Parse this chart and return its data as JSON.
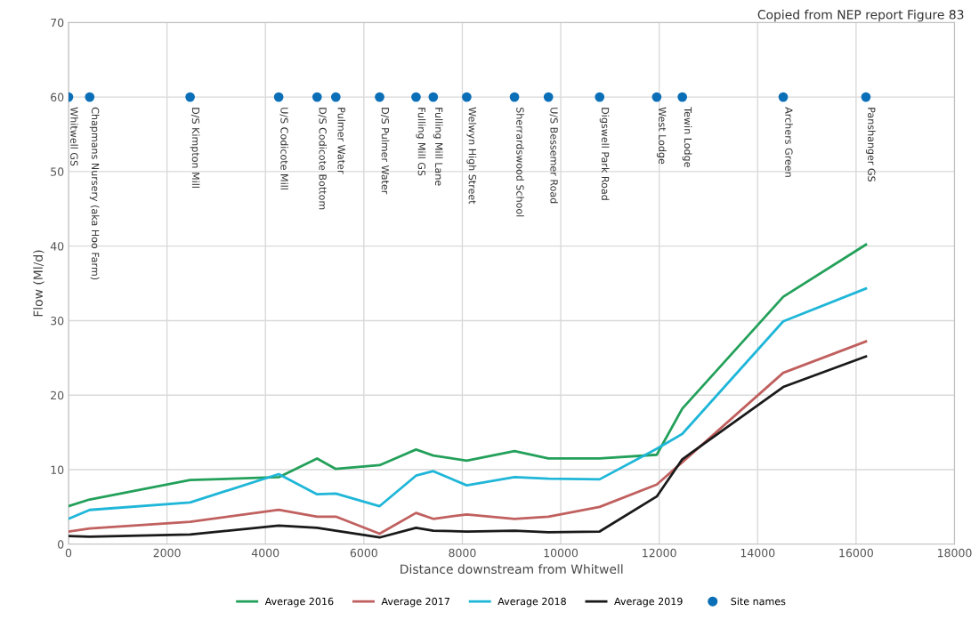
{
  "chart_data": {
    "type": "line",
    "xlabel": "Distance downstream from Whitwell",
    "ylabel": "Flow (Ml/d)",
    "x": [
      0,
      430,
      2470,
      4270,
      5050,
      5430,
      6320,
      7060,
      7410,
      8090,
      9060,
      9750,
      10790,
      11950,
      12470,
      14520,
      16200
    ],
    "xlim": [
      0,
      18000
    ],
    "xticks": [
      0,
      2000,
      4000,
      6000,
      8000,
      10000,
      12000,
      14000,
      16000,
      18000
    ],
    "ylim": [
      0,
      70
    ],
    "yticks": [
      0,
      10,
      20,
      30,
      40,
      50,
      60,
      70
    ],
    "grid": true,
    "legend": "bottom",
    "marker": "none",
    "line_style": "solid",
    "series": [
      {
        "name": "Average 2016",
        "color": "#23a05a",
        "values": [
          5.1,
          6.0,
          8.6,
          9.0,
          11.5,
          10.1,
          10.6,
          12.7,
          11.9,
          11.2,
          12.5,
          11.5,
          11.5,
          12.0,
          18.2,
          33.2,
          40.2
        ]
      },
      {
        "name": "Average 2017",
        "color": "#c0605f",
        "values": [
          1.7,
          2.1,
          3.0,
          4.6,
          3.7,
          3.7,
          1.4,
          4.2,
          3.4,
          4.0,
          3.4,
          3.7,
          5.0,
          8.0,
          11.0,
          23.0,
          27.2
        ]
      },
      {
        "name": "Average 2018",
        "color": "#1fb6d8",
        "values": [
          3.4,
          4.6,
          5.6,
          9.4,
          6.7,
          6.8,
          5.1,
          9.2,
          9.8,
          7.9,
          9.0,
          8.8,
          8.7,
          12.8,
          14.8,
          29.9,
          34.3
        ]
      },
      {
        "name": "Average 2019",
        "color": "#1a1a1a",
        "values": [
          1.1,
          1.0,
          1.3,
          2.5,
          2.2,
          1.8,
          0.9,
          2.2,
          1.8,
          1.7,
          1.8,
          1.6,
          1.7,
          6.4,
          11.4,
          21.1,
          25.2
        ]
      },
      {
        "name": "Site names",
        "type": "scatter",
        "marker": "circle",
        "color": "#0b6fb8",
        "values": [
          60,
          60,
          60,
          60,
          60,
          60,
          60,
          60,
          60,
          60,
          60,
          60,
          60,
          60,
          60,
          60,
          60
        ]
      }
    ],
    "annotations": [
      {
        "text": "Whitwell GS",
        "x": 0,
        "y": 60
      },
      {
        "text": "Chapmans Nursery (aka Hoo Farm)",
        "x": 430,
        "y": 60
      },
      {
        "text": "D/S Kimpton Mill",
        "x": 2470,
        "y": 60
      },
      {
        "text": "U/S Codicote Mill",
        "x": 4270,
        "y": 60
      },
      {
        "text": "D/S Codicote Bottom",
        "x": 5050,
        "y": 60
      },
      {
        "text": "Pulmer Water",
        "x": 5430,
        "y": 60
      },
      {
        "text": "D/S Pulmer Water",
        "x": 6320,
        "y": 60
      },
      {
        "text": "Fulling Mill GS",
        "x": 7060,
        "y": 60
      },
      {
        "text": "Fulling Mill Lane",
        "x": 7410,
        "y": 60
      },
      {
        "text": "Welwyn High Street",
        "x": 8090,
        "y": 60
      },
      {
        "text": "Sherrardswood School",
        "x": 9060,
        "y": 60
      },
      {
        "text": "U/S Bessemer Road",
        "x": 9750,
        "y": 60
      },
      {
        "text": "Digswell Park Road",
        "x": 10790,
        "y": 60
      },
      {
        "text": "West Lodge",
        "x": 11950,
        "y": 60
      },
      {
        "text": "Tewin Lodge",
        "x": 12470,
        "y": 60
      },
      {
        "text": "Archers Green",
        "x": 14520,
        "y": 60
      },
      {
        "text": "Panshanger GS",
        "x": 16200,
        "y": 60
      },
      "Copied from NEP report Figure 83"
    ]
  }
}
